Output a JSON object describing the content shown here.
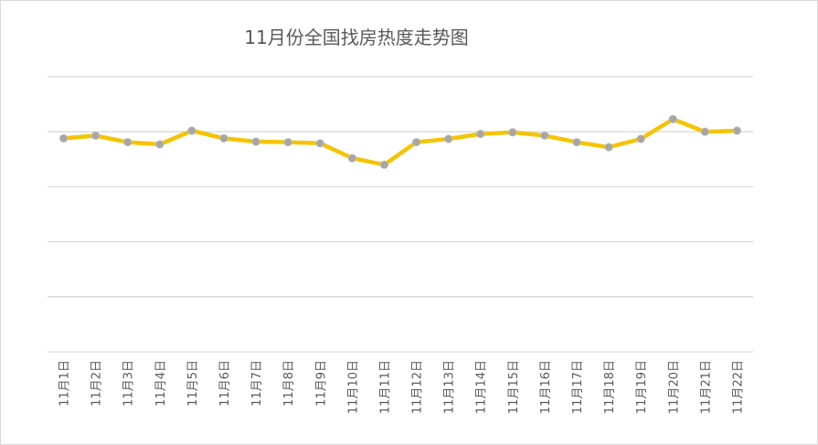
{
  "chart_data": {
    "type": "line",
    "title": "11月份全国找房热度走势图",
    "categories": [
      "11月1日",
      "11月2日",
      "11月3日",
      "11月4日",
      "11月5日",
      "11月6日",
      "11月7日",
      "11月8日",
      "11月9日",
      "11月10日",
      "11月11日",
      "11月12日",
      "11月13日",
      "11月14日",
      "11月15日",
      "11月16日",
      "11月17日",
      "11月18日",
      "11月19日",
      "11月20日",
      "11月21日",
      "11月22日"
    ],
    "series": [
      {
        "values": [
          3.88,
          3.93,
          3.81,
          3.77,
          4.02,
          3.88,
          3.82,
          3.81,
          3.79,
          3.52,
          3.4,
          3.81,
          3.87,
          3.96,
          3.99,
          3.93,
          3.81,
          3.72,
          3.87,
          4.23,
          4.0,
          4.02
        ],
        "color": "#f5c400",
        "marker_color": "#a6a6a6"
      }
    ],
    "ylim": [
      0,
      5
    ],
    "y_gridlines": [
      0,
      1,
      2,
      3,
      4,
      5
    ],
    "y_tick_labels_shown": false,
    "grid": true,
    "legend": "none"
  }
}
